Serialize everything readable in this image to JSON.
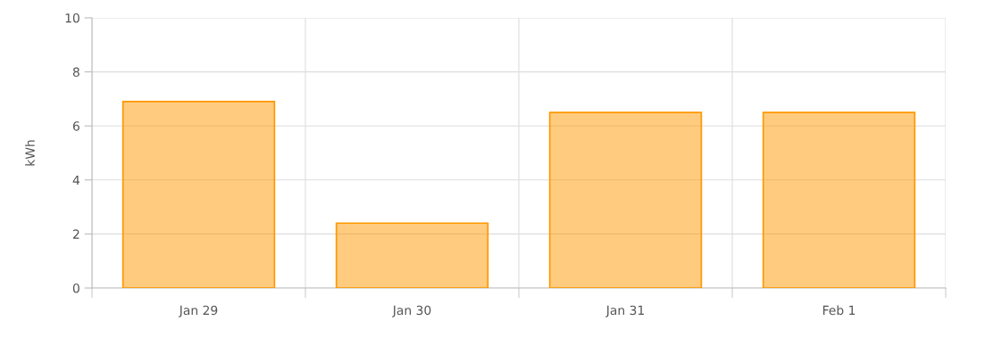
{
  "chart_data": {
    "type": "bar",
    "ylabel": "kWh",
    "categories": [
      "Jan 29",
      "Jan 30",
      "Jan 31",
      "Feb 1"
    ],
    "series": [
      {
        "color": "#ff9800",
        "values": [
          6.9,
          2.4,
          6.5,
          6.5
        ]
      }
    ],
    "ylim": [
      0,
      10
    ],
    "yticks": [
      0,
      2,
      4,
      6,
      8,
      10
    ],
    "grid": true,
    "legend": false
  }
}
